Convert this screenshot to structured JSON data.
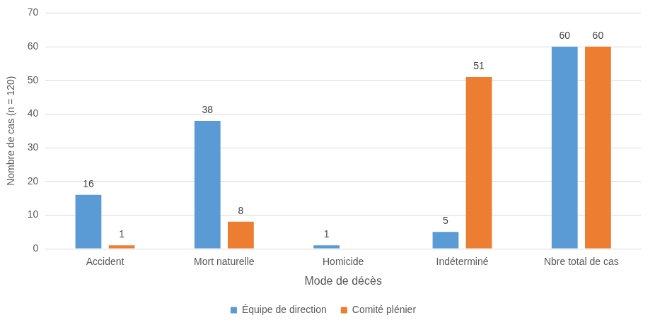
{
  "chart_data": {
    "type": "bar",
    "x_label": "Mode de décès",
    "y_label": "Nombre de cas (n = 120)",
    "categories": [
      "Accident",
      "Mort naturelle",
      "Homicide",
      "Indéterminé",
      "Nbre total de cas"
    ],
    "series": [
      {
        "name": "Équipe de direction",
        "color": "#5b9bd5",
        "values": [
          16,
          38,
          1,
          5,
          60
        ]
      },
      {
        "name": "Comité plénier",
        "color": "#ed7d31",
        "values": [
          1,
          8,
          null,
          51,
          60
        ]
      }
    ],
    "ylim": [
      0,
      70
    ],
    "yticks": [
      0,
      10,
      20,
      30,
      40,
      50,
      60,
      70
    ],
    "grid": true,
    "legend": "bottom",
    "data_labels": true
  }
}
